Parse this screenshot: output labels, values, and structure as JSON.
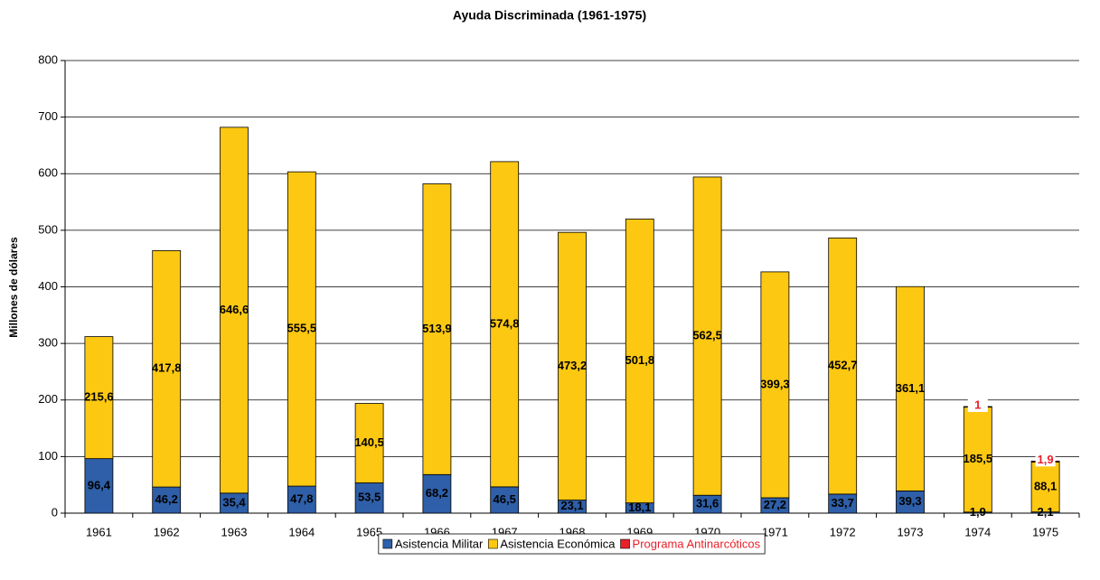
{
  "chart_data": {
    "type": "stacked_bar",
    "title": "Ayuda Discriminada (1961-1975)",
    "y_label": "Millones de dólares",
    "categories": [
      "1961",
      "1962",
      "1963",
      "1964",
      "1965",
      "1966",
      "1967",
      "1968",
      "1969",
      "1970",
      "1971",
      "1972",
      "1973",
      "1974",
      "1975"
    ],
    "series": [
      {
        "name": "Asistencia Militar",
        "color": "#2e5fa8",
        "label_color": "#000000",
        "values": [
          96.4,
          46.2,
          35.4,
          47.8,
          53.5,
          68.2,
          46.5,
          23.1,
          18.1,
          31.6,
          27.2,
          33.7,
          39.3,
          1.9,
          2.1
        ],
        "value_labels": [
          "96,4",
          "46,2",
          "35,4",
          "47,8",
          "53,5",
          "68,2",
          "46,5",
          "23,1",
          "18,1",
          "31,6",
          "27,2",
          "33,7",
          "39,3",
          "1,9",
          "2,1"
        ]
      },
      {
        "name": "Asistencia Económica",
        "color": "#fcc812",
        "label_color": "#000000",
        "values": [
          215.6,
          417.8,
          646.6,
          555.5,
          140.5,
          513.9,
          574.8,
          473.2,
          501.8,
          562.5,
          399.3,
          452.7,
          361.1,
          185.5,
          88.1
        ],
        "value_labels": [
          "215,6",
          "417,8",
          "646,6",
          "555,5",
          "140,5",
          "513,9",
          "574,8",
          "473,2",
          "501,8",
          "562,5",
          "399,3",
          "452,7",
          "361,1",
          "185,5",
          "88,1"
        ]
      },
      {
        "name": "Programa Antinarcóticos",
        "color": "#e8202a",
        "label_color": "#e8202a",
        "values": [
          null,
          null,
          null,
          null,
          null,
          null,
          null,
          null,
          null,
          null,
          null,
          null,
          null,
          1,
          1.9
        ],
        "value_labels": [
          null,
          null,
          null,
          null,
          null,
          null,
          null,
          null,
          null,
          null,
          null,
          null,
          null,
          "1",
          "1,9"
        ]
      }
    ],
    "ylim": [
      0,
      800
    ],
    "yticks": [
      0,
      100,
      200,
      300,
      400,
      500,
      600,
      700,
      800
    ],
    "grid": true,
    "legend": "bottom"
  }
}
